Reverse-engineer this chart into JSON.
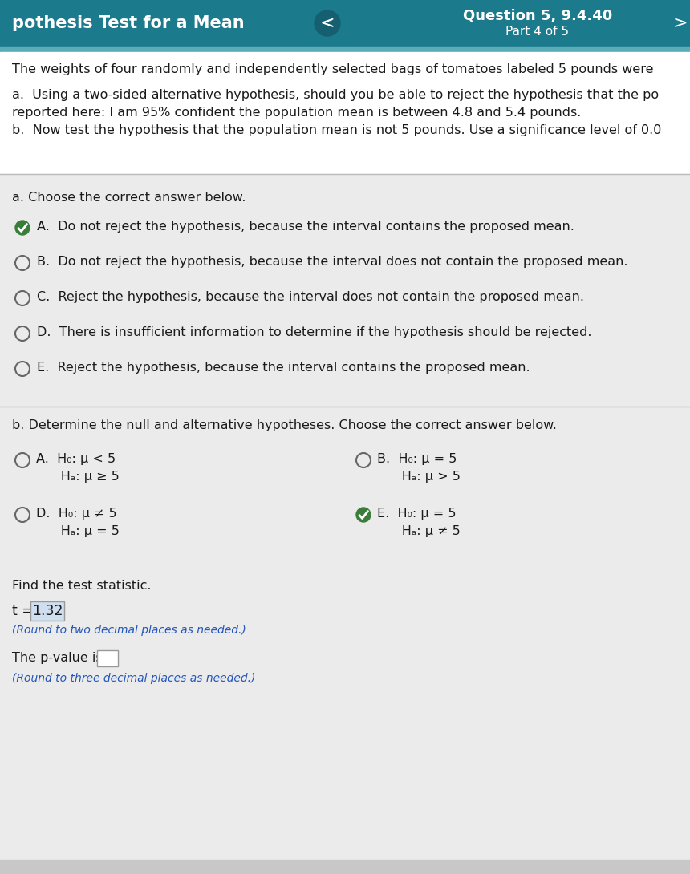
{
  "header_bg": "#1b7a8c",
  "header_text_color": "#ffffff",
  "header_left": "pothesis Test for a Mean",
  "header_right_title": "Question 5, 9.4.40",
  "header_right_sub": "Part 4 of 5",
  "body_bg": "#d8d8d8",
  "intro_bg": "#ffffff",
  "content_bg": "#ebebeb",
  "intro_line1": "The weights of four randomly and independently selected bags of tomatoes labeled 5 pounds were",
  "intro_line2": "a.  Using a two-sided alternative hypothesis, should you be able to reject the hypothesis that the po",
  "intro_line3": "reported here: I am 95% confident the population mean is between 4.8 and 5.4 pounds.",
  "intro_line4": "b.  Now test the hypothesis that the population mean is not 5 pounds. Use a significance level of 0.0",
  "section_a_header": "a. Choose the correct answer below.",
  "options_a": [
    {
      "letter": "A",
      "text": "Do not reject the hypothesis, because the interval contains the proposed mean.",
      "selected": true
    },
    {
      "letter": "B",
      "text": "Do not reject the hypothesis, because the interval does not contain the proposed mean.",
      "selected": false
    },
    {
      "letter": "C",
      "text": "Reject the hypothesis, because the interval does not contain the proposed mean.",
      "selected": false
    },
    {
      "letter": "D",
      "text": "There is insufficient information to determine if the hypothesis should be rejected.",
      "selected": false
    },
    {
      "letter": "E",
      "text": "Reject the hypothesis, because the interval contains the proposed mean.",
      "selected": false
    }
  ],
  "section_b_header": "b. Determine the null and alternative hypotheses. Choose the correct answer below.",
  "options_b_left": [
    {
      "letter": "A",
      "line1": "H₀: μ < 5",
      "line2": "Hₐ: μ ≥ 5",
      "selected": false
    },
    {
      "letter": "D",
      "line1": "H₀: μ ≠ 5",
      "line2": "Hₐ: μ = 5",
      "selected": false
    }
  ],
  "options_b_right": [
    {
      "letter": "B",
      "line1": "H₀: μ = 5",
      "line2": "Hₐ: μ > 5",
      "selected": false
    },
    {
      "letter": "E",
      "line1": "H₀: μ = 5",
      "line2": "Hₐ: μ ≠ 5",
      "selected": true
    }
  ],
  "find_test_stat": "Find the test statistic.",
  "t_label": "t = ",
  "t_value": "1.32",
  "t_note": "(Round to two decimal places as needed.)",
  "pval_label": "The p-value is",
  "pval_note": "(Round to three decimal places as needed.)",
  "text_color": "#1a1a1a",
  "light_text": "#444444",
  "radio_empty_color": "#666666",
  "check_green": "#3a7d3a",
  "divider_color": "#bbbbbb",
  "blue_italic": "#2255bb",
  "nav_arrow_color": "#ffffff",
  "header_circle_bg": "#155f70",
  "font_body": 11.5,
  "font_header": 15,
  "font_small": 10.0
}
